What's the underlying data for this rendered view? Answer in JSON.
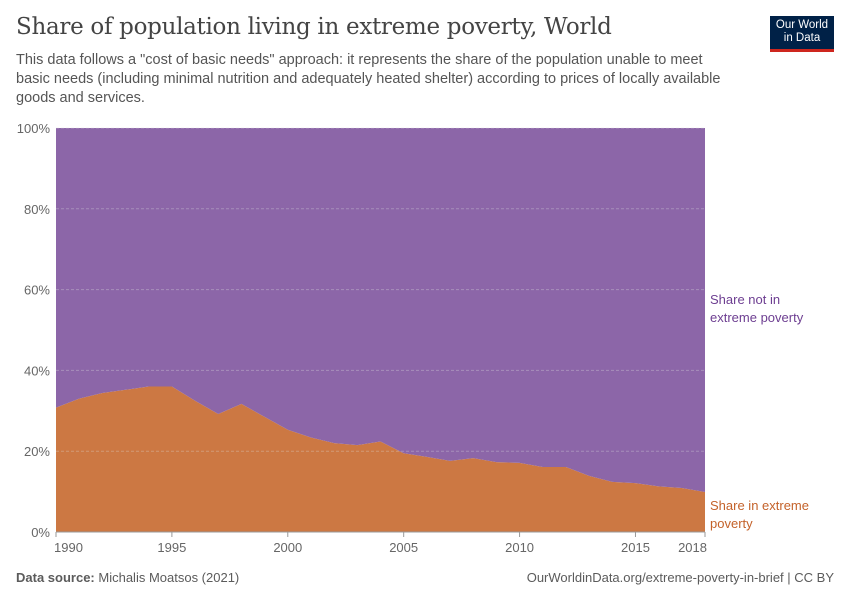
{
  "title": "Share of population living in extreme poverty, World",
  "subtitle": "This data follows a \"cost of basic needs\" approach: it represents the share of the population unable to meet basic needs (including minimal nutrition and adequately heated shelter) according to prices of locally available goods and services.",
  "logo": {
    "line1": "Our World",
    "line2": "in Data"
  },
  "footer": {
    "source_label": "Data source:",
    "source": "Michalis Moatsos (2021)",
    "right": "OurWorldinData.org/extreme-poverty-in-brief | CC BY"
  },
  "chart_data": {
    "type": "area",
    "stacked": true,
    "x": [
      1990,
      1991,
      1992,
      1993,
      1994,
      1995,
      1996,
      1997,
      1998,
      1999,
      2000,
      2001,
      2002,
      2003,
      2004,
      2005,
      2006,
      2007,
      2008,
      2009,
      2010,
      2011,
      2012,
      2013,
      2014,
      2015,
      2016,
      2017,
      2018
    ],
    "series": [
      {
        "name": "Share in extreme poverty",
        "color": "#cc7843",
        "values": [
          30.8,
          33,
          34.4,
          35.2,
          36.0,
          36.0,
          32.5,
          29.2,
          31.7,
          28.5,
          25.3,
          23.4,
          22.0,
          21.5,
          22.4,
          19.5,
          18.6,
          17.6,
          18.3,
          17.3,
          17.1,
          16.1,
          16.1,
          13.9,
          12.4,
          12.1,
          11.3,
          10.9,
          9.9
        ]
      },
      {
        "name": "Share not in extreme poverty",
        "color": "#8c66a8",
        "values": [
          69.2,
          67,
          65.6,
          64.8,
          64.0,
          64.0,
          67.5,
          70.8,
          68.3,
          71.5,
          74.7,
          76.6,
          78.0,
          78.5,
          77.6,
          80.5,
          81.4,
          82.4,
          81.7,
          82.7,
          82.9,
          83.9,
          83.9,
          86.1,
          87.6,
          87.9,
          88.7,
          89.1,
          90.1
        ]
      }
    ],
    "series_labels": [
      [
        "Share in extreme",
        "poverty"
      ],
      [
        "Share not in",
        "extreme poverty"
      ]
    ],
    "ylim": [
      0,
      100
    ],
    "yticks": [
      "0%",
      "20%",
      "40%",
      "60%",
      "80%",
      "100%"
    ],
    "xticks": [
      "1990",
      "1995",
      "2000",
      "2005",
      "2010",
      "2015",
      "2018"
    ],
    "grid": true
  }
}
